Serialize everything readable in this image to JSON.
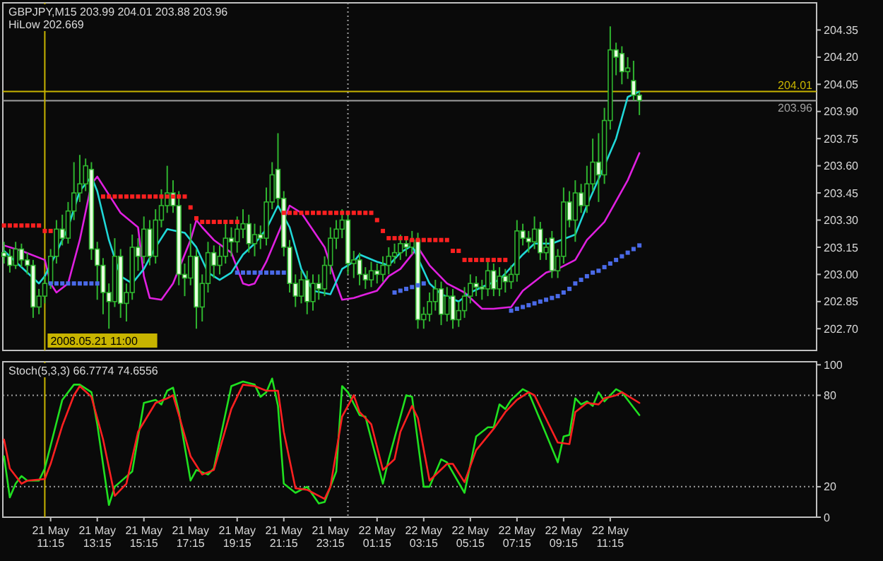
{
  "chart_data": [
    {
      "type": "candlestick",
      "title": "GBPJPY,M15  203.99 204.01 203.88 203.96",
      "subtitle": "HiLow 202.669",
      "color": "#2fb52f",
      "tick_labels": "y",
      "xlim": [
        "2008-05-21T09:12",
        "2008-05-22T20:06"
      ],
      "ylim": [
        202.58,
        204.5
      ],
      "yticks": [
        {
          "value": 204.35,
          "label": "204.35"
        },
        {
          "value": 204.2,
          "label": "204.20"
        },
        {
          "value": 204.05,
          "label": "204.05"
        },
        {
          "value": 203.9,
          "label": "203.90"
        },
        {
          "value": 203.75,
          "label": "203.75"
        },
        {
          "value": 203.6,
          "label": "203.60"
        },
        {
          "value": 203.45,
          "label": "203.45"
        },
        {
          "value": 203.3,
          "label": "203.30"
        },
        {
          "value": 203.15,
          "label": "203.15"
        },
        {
          "value": 203.0,
          "label": "203.00"
        },
        {
          "value": 202.85,
          "label": "202.85"
        },
        {
          "value": 202.7,
          "label": "202.70"
        }
      ],
      "x": [
        "2008-05-21T09:15",
        "2008-05-21T09:30",
        "2008-05-21T09:45",
        "2008-05-21T10:00",
        "2008-05-21T10:15",
        "2008-05-21T10:30",
        "2008-05-21T10:45",
        "2008-05-21T11:00",
        "2008-05-21T11:15",
        "2008-05-21T11:30",
        "2008-05-21T11:45",
        "2008-05-21T12:00",
        "2008-05-21T12:15",
        "2008-05-21T12:30",
        "2008-05-21T12:45",
        "2008-05-21T13:00",
        "2008-05-21T13:15",
        "2008-05-21T13:30",
        "2008-05-21T13:45",
        "2008-05-21T14:00",
        "2008-05-21T14:15",
        "2008-05-21T14:30",
        "2008-05-21T14:45",
        "2008-05-21T15:00",
        "2008-05-21T15:15",
        "2008-05-21T15:30",
        "2008-05-21T15:45",
        "2008-05-21T16:00",
        "2008-05-21T16:15",
        "2008-05-21T16:30",
        "2008-05-21T16:45",
        "2008-05-21T17:00",
        "2008-05-21T17:15",
        "2008-05-21T17:30",
        "2008-05-21T17:45",
        "2008-05-21T18:00",
        "2008-05-21T18:15",
        "2008-05-21T18:30",
        "2008-05-21T18:45",
        "2008-05-21T19:00",
        "2008-05-21T19:15",
        "2008-05-21T19:30",
        "2008-05-21T19:45",
        "2008-05-21T20:00",
        "2008-05-21T20:15",
        "2008-05-21T20:30",
        "2008-05-21T20:45",
        "2008-05-21T21:00",
        "2008-05-21T21:15",
        "2008-05-21T21:30",
        "2008-05-21T21:45",
        "2008-05-21T22:00",
        "2008-05-21T22:15",
        "2008-05-21T22:30",
        "2008-05-21T22:45",
        "2008-05-21T23:00",
        "2008-05-21T23:15",
        "2008-05-21T23:30",
        "2008-05-21T23:45",
        "2008-05-22T00:00",
        "2008-05-22T00:15",
        "2008-05-22T00:30",
        "2008-05-22T00:45",
        "2008-05-22T01:00",
        "2008-05-22T01:15",
        "2008-05-22T01:30",
        "2008-05-22T01:45",
        "2008-05-22T02:00",
        "2008-05-22T02:15",
        "2008-05-22T02:30",
        "2008-05-22T02:45",
        "2008-05-22T03:00",
        "2008-05-22T03:15",
        "2008-05-22T03:30",
        "2008-05-22T03:45",
        "2008-05-22T04:00",
        "2008-05-22T04:15",
        "2008-05-22T04:30",
        "2008-05-22T04:45",
        "2008-05-22T05:00",
        "2008-05-22T05:15",
        "2008-05-22T05:30",
        "2008-05-22T05:45",
        "2008-05-22T06:00",
        "2008-05-22T06:15",
        "2008-05-22T06:30",
        "2008-05-22T06:45",
        "2008-05-22T07:00",
        "2008-05-22T07:15",
        "2008-05-22T07:30",
        "2008-05-22T07:45",
        "2008-05-22T08:00",
        "2008-05-22T08:15",
        "2008-05-22T08:30",
        "2008-05-22T08:45",
        "2008-05-22T09:00",
        "2008-05-22T09:15",
        "2008-05-22T09:30",
        "2008-05-22T09:45",
        "2008-05-22T10:00",
        "2008-05-22T10:15",
        "2008-05-22T10:30",
        "2008-05-22T10:45",
        "2008-05-22T11:00",
        "2008-05-22T11:15",
        "2008-05-22T11:30",
        "2008-05-22T11:45",
        "2008-05-22T12:00",
        "2008-05-22T12:15",
        "2008-05-22T12:30"
      ],
      "ohlc": [
        [
          203.12,
          203.18,
          203.06,
          203.1
        ],
        [
          203.1,
          203.14,
          203.01,
          203.05
        ],
        [
          203.05,
          203.18,
          203.03,
          203.14
        ],
        [
          203.14,
          203.17,
          203.04,
          203.08
        ],
        [
          203.08,
          203.12,
          203.0,
          203.05
        ],
        [
          203.05,
          203.08,
          202.76,
          202.82
        ],
        [
          202.82,
          202.92,
          202.78,
          202.88
        ],
        [
          202.88,
          202.99,
          202.84,
          202.95
        ],
        [
          202.95,
          203.14,
          202.92,
          203.1
        ],
        [
          203.1,
          203.3,
          203.06,
          203.25
        ],
        [
          203.25,
          203.33,
          203.16,
          203.2
        ],
        [
          203.2,
          203.4,
          203.17,
          203.35
        ],
        [
          203.35,
          203.62,
          203.3,
          203.45
        ],
        [
          203.45,
          203.66,
          203.4,
          203.5
        ],
        [
          203.5,
          203.64,
          203.46,
          203.6
        ],
        [
          203.58,
          203.62,
          203.08,
          203.14
        ],
        [
          203.14,
          203.18,
          202.86,
          203.05
        ],
        [
          203.05,
          203.09,
          202.78,
          202.9
        ],
        [
          202.9,
          202.95,
          202.7,
          202.85
        ],
        [
          202.85,
          203.2,
          202.82,
          203.1
        ],
        [
          203.1,
          203.14,
          202.76,
          202.84
        ],
        [
          202.84,
          202.95,
          202.74,
          202.9
        ],
        [
          202.9,
          203.22,
          202.86,
          203.15
        ],
        [
          203.15,
          203.2,
          203.02,
          203.1
        ],
        [
          203.1,
          203.32,
          203.06,
          203.25
        ],
        [
          203.25,
          203.3,
          203.05,
          203.1
        ],
        [
          203.1,
          203.36,
          203.06,
          203.3
        ],
        [
          203.3,
          203.47,
          203.26,
          203.38
        ],
        [
          203.38,
          203.6,
          203.34,
          203.45
        ],
        [
          203.45,
          203.52,
          203.34,
          203.38
        ],
        [
          203.38,
          203.46,
          202.94,
          203.0
        ],
        [
          203.0,
          203.06,
          202.88,
          202.98
        ],
        [
          202.98,
          203.28,
          202.94,
          203.1
        ],
        [
          203.1,
          203.14,
          202.7,
          202.82
        ],
        [
          202.82,
          203.0,
          202.74,
          202.95
        ],
        [
          202.95,
          203.18,
          202.9,
          203.12
        ],
        [
          203.12,
          203.16,
          202.98,
          203.05
        ],
        [
          203.05,
          203.16,
          203.0,
          203.1
        ],
        [
          203.1,
          203.28,
          203.06,
          203.2
        ],
        [
          203.2,
          203.26,
          203.1,
          203.18
        ],
        [
          203.18,
          203.32,
          203.12,
          203.25
        ],
        [
          203.25,
          203.36,
          203.2,
          203.28
        ],
        [
          203.28,
          203.33,
          203.12,
          203.17
        ],
        [
          203.17,
          203.28,
          203.1,
          203.22
        ],
        [
          203.22,
          203.27,
          203.14,
          203.2
        ],
        [
          203.2,
          203.48,
          203.16,
          203.4
        ],
        [
          203.4,
          203.62,
          203.36,
          203.55
        ],
        [
          203.58,
          203.78,
          203.38,
          203.42
        ],
        [
          203.42,
          203.46,
          203.1,
          203.15
        ],
        [
          203.15,
          203.19,
          202.9,
          202.95
        ],
        [
          202.95,
          203.0,
          202.82,
          202.88
        ],
        [
          202.88,
          203.02,
          202.84,
          202.97
        ],
        [
          202.97,
          203.02,
          202.78,
          202.85
        ],
        [
          202.85,
          203.0,
          202.8,
          202.95
        ],
        [
          202.95,
          203.0,
          202.86,
          202.92
        ],
        [
          202.92,
          203.1,
          202.88,
          203.05
        ],
        [
          203.05,
          203.26,
          203.0,
          203.2
        ],
        [
          203.2,
          203.3,
          203.14,
          203.25
        ],
        [
          203.25,
          203.36,
          203.2,
          203.3
        ],
        [
          203.3,
          203.34,
          203.0,
          203.06
        ],
        [
          203.06,
          203.13,
          202.98,
          203.08
        ],
        [
          203.08,
          203.12,
          202.94,
          203.0
        ],
        [
          203.0,
          203.04,
          202.92,
          202.97
        ],
        [
          202.97,
          203.07,
          202.93,
          203.02
        ],
        [
          203.02,
          203.06,
          202.95,
          203.0
        ],
        [
          203.0,
          203.1,
          202.96,
          203.05
        ],
        [
          203.05,
          203.15,
          203.0,
          203.1
        ],
        [
          203.1,
          203.17,
          203.06,
          203.12
        ],
        [
          203.12,
          203.22,
          203.08,
          203.17
        ],
        [
          203.17,
          203.21,
          203.1,
          203.15
        ],
        [
          203.15,
          203.24,
          203.11,
          203.19
        ],
        [
          203.19,
          203.23,
          202.7,
          202.75
        ],
        [
          202.75,
          202.82,
          202.7,
          202.78
        ],
        [
          202.78,
          202.9,
          202.74,
          202.85
        ],
        [
          202.85,
          202.97,
          202.8,
          202.92
        ],
        [
          202.92,
          202.96,
          202.72,
          202.78
        ],
        [
          202.78,
          202.93,
          202.74,
          202.88
        ],
        [
          202.88,
          202.92,
          202.7,
          202.75
        ],
        [
          202.75,
          202.85,
          202.71,
          202.8
        ],
        [
          202.8,
          202.93,
          202.76,
          202.88
        ],
        [
          202.88,
          203.0,
          202.84,
          202.95
        ],
        [
          202.95,
          202.99,
          202.88,
          202.93
        ],
        [
          202.93,
          202.97,
          202.86,
          202.92
        ],
        [
          202.92,
          203.08,
          202.88,
          203.02
        ],
        [
          203.02,
          203.06,
          202.88,
          202.92
        ],
        [
          202.92,
          203.04,
          202.88,
          202.99
        ],
        [
          202.99,
          203.03,
          202.9,
          202.96
        ],
        [
          202.96,
          203.05,
          202.92,
          203.0
        ],
        [
          203.0,
          203.3,
          202.96,
          203.24
        ],
        [
          203.24,
          203.28,
          203.16,
          203.2
        ],
        [
          203.2,
          203.24,
          203.12,
          203.18
        ],
        [
          203.18,
          203.32,
          203.14,
          203.25
        ],
        [
          203.25,
          203.29,
          203.08,
          203.12
        ],
        [
          203.12,
          203.2,
          203.08,
          203.15
        ],
        [
          203.2,
          203.24,
          202.98,
          203.02
        ],
        [
          203.02,
          203.14,
          202.98,
          203.1
        ],
        [
          203.1,
          203.48,
          203.06,
          203.4
        ],
        [
          203.4,
          203.46,
          203.26,
          203.3
        ],
        [
          203.3,
          203.52,
          203.18,
          203.45
        ],
        [
          203.45,
          203.5,
          203.34,
          203.38
        ],
        [
          203.38,
          203.6,
          203.34,
          203.5
        ],
        [
          203.5,
          203.75,
          203.46,
          203.62
        ],
        [
          203.62,
          203.78,
          203.4,
          203.55
        ],
        [
          203.55,
          203.92,
          203.5,
          203.85
        ],
        [
          203.85,
          204.37,
          203.8,
          204.24
        ],
        [
          204.24,
          204.28,
          204.1,
          204.2
        ],
        [
          204.22,
          204.26,
          204.05,
          204.12
        ],
        [
          204.12,
          204.2,
          204.08,
          204.14
        ],
        [
          204.07,
          204.18,
          203.96,
          203.99
        ],
        [
          203.99,
          204.01,
          203.88,
          203.96
        ]
      ],
      "series": [
        {
          "type": "line",
          "color": "#e020e0",
          "x": [
            "2008-05-21T09:15",
            "2008-05-21T10:00",
            "2008-05-21T11:00",
            "2008-05-21T11:15",
            "2008-05-21T11:30",
            "2008-05-21T12:00",
            "2008-05-21T12:30",
            "2008-05-21T13:00",
            "2008-05-21T13:15",
            "2008-05-21T13:45",
            "2008-05-21T14:15",
            "2008-05-21T15:00",
            "2008-05-21T15:15",
            "2008-05-21T15:30",
            "2008-05-21T16:00",
            "2008-05-21T16:30",
            "2008-05-21T17:15",
            "2008-05-21T17:30",
            "2008-05-21T17:45",
            "2008-05-21T18:15",
            "2008-05-21T19:00",
            "2008-05-21T19:30",
            "2008-05-21T19:45",
            "2008-05-21T20:00",
            "2008-05-21T20:30",
            "2008-05-21T21:15",
            "2008-05-21T21:30",
            "2008-05-21T22:00",
            "2008-05-21T23:00",
            "2008-05-21T23:30",
            "2008-05-21T23:45",
            "2008-05-22T00:15",
            "2008-05-22T01:15",
            "2008-05-22T01:45",
            "2008-05-22T02:15",
            "2008-05-22T03:00",
            "2008-05-22T03:30",
            "2008-05-22T04:15",
            "2008-05-22T05:00",
            "2008-05-22T05:45",
            "2008-05-22T06:15",
            "2008-05-22T07:00",
            "2008-05-22T07:30",
            "2008-05-22T08:30",
            "2008-05-22T09:00",
            "2008-05-22T09:45",
            "2008-05-22T10:15",
            "2008-05-22T11:00",
            "2008-05-22T12:00",
            "2008-05-22T12:30"
          ],
          "values": [
            203.16,
            203.13,
            203.08,
            202.95,
            202.9,
            202.95,
            203.19,
            203.5,
            203.54,
            203.44,
            203.34,
            203.26,
            202.99,
            202.87,
            202.86,
            202.95,
            203.19,
            203.3,
            203.26,
            203.19,
            203.12,
            202.95,
            202.94,
            202.95,
            203.07,
            203.3,
            203.38,
            203.34,
            203.15,
            202.95,
            202.86,
            202.87,
            202.91,
            202.99,
            203.03,
            203.15,
            203.05,
            202.95,
            202.9,
            202.81,
            202.81,
            202.82,
            202.91,
            203.01,
            203.03,
            203.08,
            203.19,
            203.29,
            203.52,
            203.67
          ]
        },
        {
          "type": "line",
          "color": "#20d8d8",
          "x": [
            "2008-05-21T09:15",
            "2008-05-21T09:45",
            "2008-05-21T10:15",
            "2008-05-21T10:45",
            "2008-05-21T11:00",
            "2008-05-21T11:30",
            "2008-05-21T12:00",
            "2008-05-21T12:30",
            "2008-05-21T13:00",
            "2008-05-21T13:15",
            "2008-05-21T13:45",
            "2008-05-21T14:15",
            "2008-05-21T14:45",
            "2008-05-21T15:15",
            "2008-05-21T15:45",
            "2008-05-21T16:15",
            "2008-05-21T17:00",
            "2008-05-21T17:30",
            "2008-05-21T18:00",
            "2008-05-21T18:30",
            "2008-05-21T19:00",
            "2008-05-21T19:30",
            "2008-05-21T20:00",
            "2008-05-21T20:30",
            "2008-05-21T21:00",
            "2008-05-21T21:30",
            "2008-05-21T22:00",
            "2008-05-21T22:30",
            "2008-05-21T23:15",
            "2008-05-21T23:45",
            "2008-05-22T00:15",
            "2008-05-22T00:30",
            "2008-05-22T01:15",
            "2008-05-22T01:45",
            "2008-05-22T02:15",
            "2008-05-22T02:45",
            "2008-05-22T03:00",
            "2008-05-22T03:30",
            "2008-05-22T04:00",
            "2008-05-22T04:45",
            "2008-05-22T05:15",
            "2008-05-22T05:45",
            "2008-05-22T06:30",
            "2008-05-22T07:30",
            "2008-05-22T08:00",
            "2008-05-22T08:45",
            "2008-05-22T09:45",
            "2008-05-22T10:15",
            "2008-05-22T11:00",
            "2008-05-22T11:30",
            "2008-05-22T12:00",
            "2008-05-22T12:30"
          ],
          "values": [
            203.13,
            203.07,
            203.01,
            202.95,
            202.99,
            203.12,
            203.26,
            203.46,
            203.54,
            203.46,
            203.19,
            202.99,
            202.95,
            203.03,
            203.15,
            203.25,
            203.23,
            203.15,
            203.01,
            202.97,
            203.01,
            203.11,
            203.17,
            203.25,
            203.38,
            203.26,
            203.03,
            202.91,
            202.89,
            203.03,
            203.07,
            203.11,
            203.07,
            203.05,
            203.12,
            203.16,
            203.09,
            202.95,
            202.89,
            202.85,
            202.9,
            202.93,
            202.97,
            203.11,
            203.17,
            203.17,
            203.22,
            203.38,
            203.6,
            203.75,
            203.98,
            204.01
          ]
        },
        {
          "type": "scatter",
          "color": "#ff2020",
          "marker": "square",
          "x": [
            "2008-05-21T09:15",
            "2008-05-21T09:30",
            "2008-05-21T09:45",
            "2008-05-21T10:00",
            "2008-05-21T10:15",
            "2008-05-21T10:30",
            "2008-05-21T10:45",
            "2008-05-21T11:00",
            "2008-05-21T11:15",
            "2008-05-21T13:30",
            "2008-05-21T13:45",
            "2008-05-21T14:00",
            "2008-05-21T14:15",
            "2008-05-21T14:30",
            "2008-05-21T14:45",
            "2008-05-21T15:00",
            "2008-05-21T15:15",
            "2008-05-21T15:30",
            "2008-05-21T15:45",
            "2008-05-21T16:00",
            "2008-05-21T16:15",
            "2008-05-21T16:30",
            "2008-05-21T16:45",
            "2008-05-21T17:00",
            "2008-05-21T17:15",
            "2008-05-21T17:30",
            "2008-05-21T17:45",
            "2008-05-21T18:00",
            "2008-05-21T18:15",
            "2008-05-21T18:30",
            "2008-05-21T18:45",
            "2008-05-21T19:00",
            "2008-05-21T19:15",
            "2008-05-21T21:15",
            "2008-05-21T21:30",
            "2008-05-21T21:45",
            "2008-05-21T22:00",
            "2008-05-21T22:15",
            "2008-05-21T22:30",
            "2008-05-21T22:45",
            "2008-05-21T23:00",
            "2008-05-21T23:15",
            "2008-05-21T23:30",
            "2008-05-21T23:45",
            "2008-05-22T00:00",
            "2008-05-22T00:15",
            "2008-05-22T00:30",
            "2008-05-22T00:45",
            "2008-05-22T01:00",
            "2008-05-22T01:15",
            "2008-05-22T01:30",
            "2008-05-22T01:45",
            "2008-05-22T02:00",
            "2008-05-22T02:15",
            "2008-05-22T02:30",
            "2008-05-22T02:45",
            "2008-05-22T03:00",
            "2008-05-22T03:15",
            "2008-05-22T03:30",
            "2008-05-22T03:45",
            "2008-05-22T04:00",
            "2008-05-22T04:15",
            "2008-05-22T04:30",
            "2008-05-22T04:45",
            "2008-05-22T05:00",
            "2008-05-22T05:15",
            "2008-05-22T05:30",
            "2008-05-22T05:45",
            "2008-05-22T06:00",
            "2008-05-22T06:15",
            "2008-05-22T06:30",
            "2008-05-22T06:45"
          ],
          "values": [
            203.27,
            203.27,
            203.27,
            203.27,
            203.27,
            203.27,
            203.27,
            203.24,
            203.24,
            203.43,
            203.43,
            203.43,
            203.43,
            203.43,
            203.43,
            203.43,
            203.43,
            203.43,
            203.43,
            203.43,
            203.43,
            203.43,
            203.43,
            203.43,
            203.37,
            203.31,
            203.29,
            203.29,
            203.29,
            203.29,
            203.29,
            203.29,
            203.29,
            203.34,
            203.34,
            203.34,
            203.34,
            203.34,
            203.34,
            203.34,
            203.34,
            203.34,
            203.34,
            203.34,
            203.34,
            203.34,
            203.34,
            203.34,
            203.34,
            203.3,
            203.24,
            203.2,
            203.2,
            203.2,
            203.2,
            203.19,
            203.19,
            203.19,
            203.19,
            203.19,
            203.19,
            203.19,
            203.13,
            203.13,
            203.08,
            203.08,
            203.08,
            203.08,
            203.08,
            203.08,
            203.08,
            203.08
          ]
        },
        {
          "type": "scatter",
          "color": "#4a6ae8",
          "marker": "square",
          "x": [
            "2008-05-21T11:15",
            "2008-05-21T11:30",
            "2008-05-21T11:45",
            "2008-05-21T12:00",
            "2008-05-21T12:15",
            "2008-05-21T12:30",
            "2008-05-21T12:45",
            "2008-05-21T13:00",
            "2008-05-21T13:15",
            "2008-05-21T19:15",
            "2008-05-21T19:30",
            "2008-05-21T19:45",
            "2008-05-21T20:00",
            "2008-05-21T20:15",
            "2008-05-21T20:30",
            "2008-05-21T20:45",
            "2008-05-21T21:00",
            "2008-05-21T21:15",
            "2008-05-22T02:00",
            "2008-05-22T02:15",
            "2008-05-22T02:30",
            "2008-05-22T02:45",
            "2008-05-22T03:00",
            "2008-05-22T03:15",
            "2008-05-22T07:00",
            "2008-05-22T07:15",
            "2008-05-22T07:30",
            "2008-05-22T07:45",
            "2008-05-22T08:00",
            "2008-05-22T08:15",
            "2008-05-22T08:30",
            "2008-05-22T08:45",
            "2008-05-22T09:00",
            "2008-05-22T09:15",
            "2008-05-22T09:30",
            "2008-05-22T09:45",
            "2008-05-22T10:00",
            "2008-05-22T10:15",
            "2008-05-22T10:30",
            "2008-05-22T10:45",
            "2008-05-22T11:00",
            "2008-05-22T11:15",
            "2008-05-22T11:30",
            "2008-05-22T11:45",
            "2008-05-22T12:00",
            "2008-05-22T12:15",
            "2008-05-22T12:30"
          ],
          "values": [
            202.95,
            202.95,
            202.95,
            202.95,
            202.95,
            202.95,
            202.95,
            202.95,
            202.95,
            203.01,
            203.01,
            203.01,
            203.01,
            203.01,
            203.01,
            203.01,
            203.01,
            203.01,
            202.9,
            202.91,
            202.92,
            202.93,
            202.94,
            202.95,
            202.8,
            202.81,
            202.82,
            202.83,
            202.84,
            202.85,
            202.86,
            202.87,
            202.88,
            202.9,
            202.92,
            202.95,
            202.97,
            202.99,
            203.01,
            203.02,
            203.04,
            203.06,
            203.08,
            203.1,
            203.12,
            203.14,
            203.16
          ]
        }
      ],
      "ref_lines": [
        {
          "axis": "y",
          "value": 204.01,
          "label": "204.01",
          "color": "#c8b400"
        },
        {
          "axis": "y",
          "value": 203.96,
          "label": "203.96",
          "color": "#a0a0a0"
        },
        {
          "axis": "x",
          "value": "2008-05-21T11:00",
          "label": "2008.05.21 11:00",
          "color": "#c8b400"
        },
        {
          "axis": "x",
          "value": "2008-05-22T00:00",
          "color": "#a0a0a0",
          "line_style": "dotted"
        }
      ]
    },
    {
      "type": "line",
      "title": "Stoch(5,3,3) 66.7774 74.6556",
      "xlim": [
        "2008-05-21T09:12",
        "2008-05-22T20:06"
      ],
      "ylim": [
        0,
        102
      ],
      "yticks": [
        0,
        20,
        80,
        100
      ],
      "xticks": [
        {
          "value": "2008-05-21T11:15",
          "label": "21 May 11:15"
        },
        {
          "value": "2008-05-21T13:15",
          "label": "21 May 13:15"
        },
        {
          "value": "2008-05-21T15:15",
          "label": "21 May 15:15"
        },
        {
          "value": "2008-05-21T17:15",
          "label": "21 May 17:15"
        },
        {
          "value": "2008-05-21T19:15",
          "label": "21 May 19:15"
        },
        {
          "value": "2008-05-21T21:15",
          "label": "21 May 21:15"
        },
        {
          "value": "2008-05-21T23:15",
          "label": "21 May 23:15"
        },
        {
          "value": "2008-05-22T01:15",
          "label": "22 May 01:15"
        },
        {
          "value": "2008-05-22T03:15",
          "label": "22 May 03:15"
        },
        {
          "value": "2008-05-22T05:15",
          "label": "22 May 05:15"
        },
        {
          "value": "2008-05-22T07:15",
          "label": "22 May 07:15"
        },
        {
          "value": "2008-05-22T09:15",
          "label": "22 May 09:15"
        },
        {
          "value": "2008-05-22T11:15",
          "label": "22 May 11:15"
        }
      ],
      "series": [
        {
          "color": "#20e020",
          "x": [
            "2008-05-21T09:15",
            "2008-05-21T09:30",
            "2008-05-21T09:45",
            "2008-05-21T10:00",
            "2008-05-21T10:15",
            "2008-05-21T10:45",
            "2008-05-21T11:00",
            "2008-05-21T11:45",
            "2008-05-21T12:15",
            "2008-05-21T12:30",
            "2008-05-21T13:00",
            "2008-05-21T13:15",
            "2008-05-21T13:45",
            "2008-05-21T14:00",
            "2008-05-21T14:45",
            "2008-05-21T15:15",
            "2008-05-21T15:45",
            "2008-05-21T16:00",
            "2008-05-21T16:15",
            "2008-05-21T16:30",
            "2008-05-21T16:45",
            "2008-05-21T17:15",
            "2008-05-21T17:30",
            "2008-05-21T18:00",
            "2008-05-21T18:15",
            "2008-05-21T19:00",
            "2008-05-21T19:30",
            "2008-05-21T20:00",
            "2008-05-21T20:15",
            "2008-05-21T20:30",
            "2008-05-21T20:45",
            "2008-05-21T21:00",
            "2008-05-21T21:15",
            "2008-05-21T21:45",
            "2008-05-21T22:15",
            "2008-05-21T22:45",
            "2008-05-21T23:00",
            "2008-05-21T23:30",
            "2008-05-21T23:45",
            "2008-05-22T00:00",
            "2008-05-22T00:30",
            "2008-05-22T00:45",
            "2008-05-22T01:30",
            "2008-05-22T01:45",
            "2008-05-22T02:30",
            "2008-05-22T02:45",
            "2008-05-22T03:15",
            "2008-05-22T03:30",
            "2008-05-22T04:00",
            "2008-05-22T04:15",
            "2008-05-22T05:00",
            "2008-05-22T05:30",
            "2008-05-22T06:00",
            "2008-05-22T06:15",
            "2008-05-22T06:30",
            "2008-05-22T06:45",
            "2008-05-22T07:00",
            "2008-05-22T07:30",
            "2008-05-22T07:45",
            "2008-05-22T09:00",
            "2008-05-22T09:15",
            "2008-05-22T09:30",
            "2008-05-22T09:45",
            "2008-05-22T10:00",
            "2008-05-22T10:15",
            "2008-05-22T10:30",
            "2008-05-22T10:45",
            "2008-05-22T11:00",
            "2008-05-22T11:30",
            "2008-05-22T11:45",
            "2008-05-22T12:00",
            "2008-05-22T12:30"
          ],
          "values": [
            40,
            13,
            22,
            27,
            24,
            24,
            32,
            77,
            87,
            87,
            82,
            61,
            8,
            20,
            30,
            75,
            77,
            74,
            83,
            85,
            69,
            24,
            31,
            28,
            32,
            86,
            89,
            87,
            79,
            82,
            91,
            73,
            22,
            16,
            20,
            9,
            10,
            30,
            86,
            82,
            67,
            66,
            22,
            38,
            80,
            79,
            20,
            20,
            38,
            36,
            16,
            53,
            59,
            59,
            74,
            71,
            77,
            84,
            82,
            36,
            53,
            54,
            78,
            74,
            76,
            73,
            82,
            76,
            84,
            82,
            77,
            67
          ]
        },
        {
          "color": "#ff2020",
          "x": [
            "2008-05-21T09:15",
            "2008-05-21T09:30",
            "2008-05-21T10:00",
            "2008-05-21T10:15",
            "2008-05-21T11:00",
            "2008-05-21T11:15",
            "2008-05-21T11:45",
            "2008-05-21T12:15",
            "2008-05-21T12:30",
            "2008-05-21T13:00",
            "2008-05-21T13:30",
            "2008-05-21T14:00",
            "2008-05-21T14:30",
            "2008-05-21T15:00",
            "2008-05-21T15:45",
            "2008-05-21T16:15",
            "2008-05-21T16:30",
            "2008-05-21T16:45",
            "2008-05-21T17:15",
            "2008-05-21T17:45",
            "2008-05-21T18:15",
            "2008-05-21T19:00",
            "2008-05-21T19:30",
            "2008-05-21T20:00",
            "2008-05-21T20:30",
            "2008-05-21T21:00",
            "2008-05-21T21:15",
            "2008-05-21T21:45",
            "2008-05-21T22:15",
            "2008-05-21T23:00",
            "2008-05-21T23:15",
            "2008-05-21T23:45",
            "2008-05-22T00:15",
            "2008-05-22T00:30",
            "2008-05-22T01:00",
            "2008-05-22T01:30",
            "2008-05-22T02:00",
            "2008-05-22T02:15",
            "2008-05-22T02:45",
            "2008-05-22T03:00",
            "2008-05-22T03:30",
            "2008-05-22T04:15",
            "2008-05-22T04:30",
            "2008-05-22T05:00",
            "2008-05-22T05:30",
            "2008-05-22T06:15",
            "2008-05-22T06:45",
            "2008-05-22T07:15",
            "2008-05-22T07:45",
            "2008-05-22T08:00",
            "2008-05-22T09:00",
            "2008-05-22T09:30",
            "2008-05-22T09:45",
            "2008-05-22T10:15",
            "2008-05-22T10:45",
            "2008-05-22T11:00",
            "2008-05-22T11:30",
            "2008-05-22T11:45",
            "2008-05-22T12:30"
          ],
          "values": [
            51,
            32,
            22,
            24,
            25,
            35,
            60,
            80,
            86,
            79,
            51,
            14,
            22,
            56,
            75,
            78,
            80,
            67,
            40,
            28,
            31,
            71,
            87,
            86,
            83,
            83,
            56,
            19,
            18,
            12,
            20,
            66,
            80,
            69,
            61,
            31,
            38,
            56,
            73,
            65,
            24,
            35,
            35,
            23,
            44,
            58,
            69,
            77,
            82,
            80,
            49,
            48,
            69,
            75,
            74,
            78,
            80,
            82,
            75
          ]
        }
      ],
      "ref_lines": [
        {
          "axis": "y",
          "value": 80,
          "color": "#a0a0a0",
          "line_style": "dotted"
        },
        {
          "axis": "y",
          "value": 20,
          "color": "#a0a0a0",
          "line_style": "dotted"
        },
        {
          "axis": "x",
          "value": "2008-05-21T11:00",
          "color": "#c8b400"
        },
        {
          "axis": "x",
          "value": "2008-05-22T00:00",
          "color": "#a0a0a0",
          "line_style": "dotted"
        }
      ]
    }
  ]
}
